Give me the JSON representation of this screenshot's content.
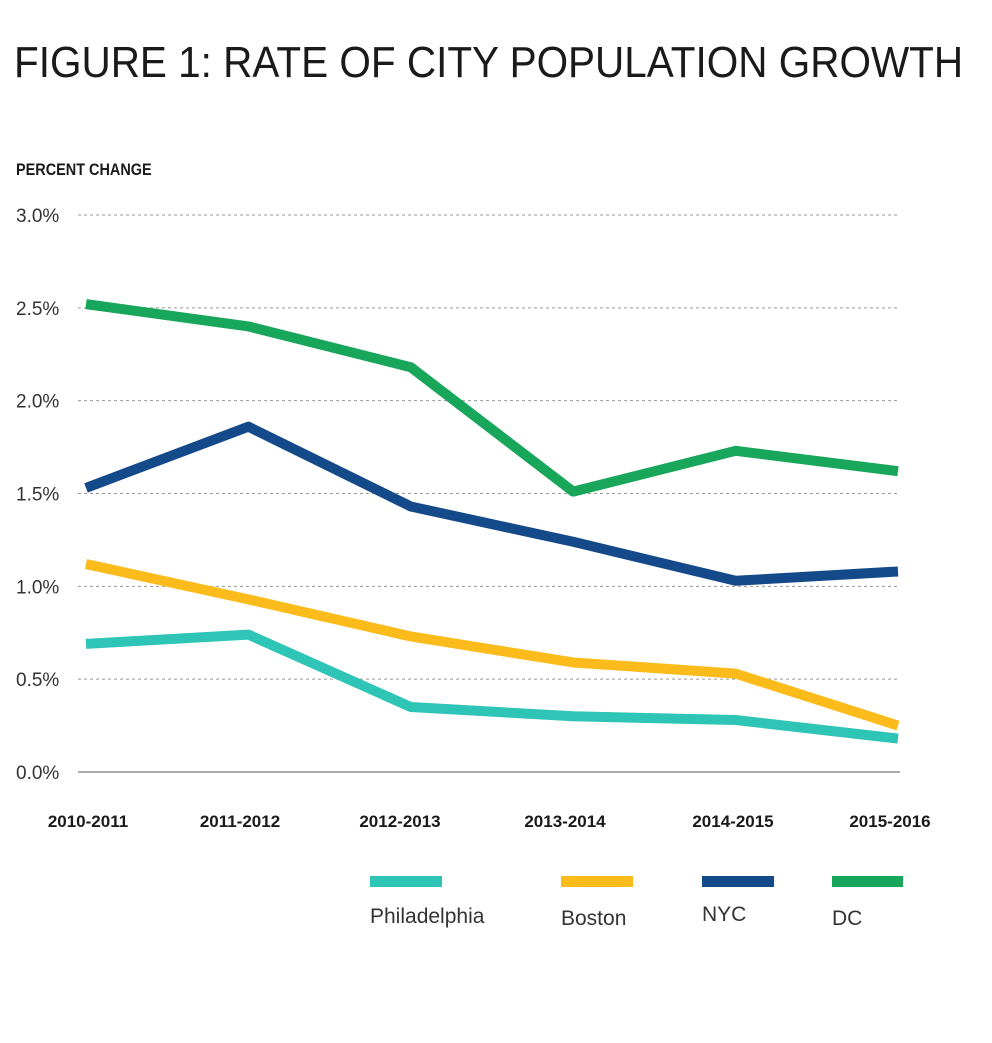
{
  "chart_data": {
    "type": "line",
    "title": "FIGURE 1:  RATE OF CITY POPULATION GROWTH",
    "ylabel": "PERCENT CHANGE",
    "xlabel": "",
    "categories": [
      "2010-2011",
      "2011-2012",
      "2012-2013",
      "2013-2014",
      "2014-2015",
      "2015-2016"
    ],
    "ylim": [
      0,
      3.0
    ],
    "yticks": [
      0.0,
      0.5,
      1.0,
      1.5,
      2.0,
      2.5,
      3.0
    ],
    "ytick_labels": [
      "0.0%",
      "0.5%",
      "1.0%",
      "1.5%",
      "2.0%",
      "2.5%",
      "3.0%"
    ],
    "grid": true,
    "legend_position": "bottom-right",
    "series": [
      {
        "name": "Philadelphia",
        "color": "#2ec4b6",
        "values": [
          0.69,
          0.74,
          0.35,
          0.3,
          0.28,
          0.18
        ]
      },
      {
        "name": "Boston",
        "color": "#fbbc1b",
        "values": [
          1.12,
          0.93,
          0.73,
          0.59,
          0.53,
          0.25
        ]
      },
      {
        "name": "NYC",
        "color": "#154a8a",
        "values": [
          1.53,
          1.86,
          1.43,
          1.24,
          1.03,
          1.08
        ]
      },
      {
        "name": "DC",
        "color": "#18a65a",
        "values": [
          2.52,
          2.4,
          2.18,
          1.51,
          1.73,
          1.62
        ]
      }
    ]
  }
}
